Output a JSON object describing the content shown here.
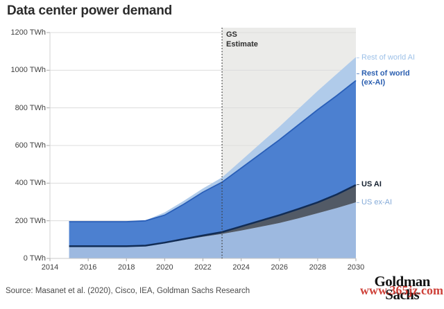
{
  "source": "Source: Masanet et al. (2020), Cisco, IEA, Goldman Sachs Research",
  "watermark": "www.365jz.com",
  "logo": {
    "line1": "Goldman",
    "line2": "Sachs"
  },
  "legend": [
    {
      "label": "Rest of world AI",
      "color": "#9dc1e8"
    },
    {
      "label": "Rest of world (ex-AI)",
      "color": "#2b5fb0"
    },
    {
      "label": "US AI",
      "color": "#14202f"
    },
    {
      "label": "US ex-AI",
      "color": "#84aad8"
    }
  ],
  "chart_data": {
    "type": "area",
    "title": "Data center power demand",
    "subtitle": "",
    "unit": "TWh",
    "estimate_label": "GS\nEstimate",
    "estimate_divider_year": 2023,
    "x": [
      2015,
      2016,
      2017,
      2018,
      2019,
      2020,
      2021,
      2022,
      2023,
      2024,
      2025,
      2026,
      2027,
      2028,
      2029,
      2030
    ],
    "x_ticks": [
      {
        "year": 2014,
        "label": "2014"
      },
      {
        "year": 2016,
        "label": "2016"
      },
      {
        "year": 2018,
        "label": "2018"
      },
      {
        "year": 2020,
        "label": "2020"
      },
      {
        "year": 2022,
        "label": "2022"
      },
      {
        "year": 2024,
        "label": "2024"
      },
      {
        "year": 2026,
        "label": "2026"
      },
      {
        "year": 2028,
        "label": "2028"
      },
      {
        "year": 2030,
        "label": "2030"
      }
    ],
    "y_ticks": [
      {
        "v": 0,
        "label": "0 TWh"
      },
      {
        "v": 200,
        "label": "200 TWh"
      },
      {
        "v": 400,
        "label": "400 TWh"
      },
      {
        "v": 600,
        "label": "600 TWh"
      },
      {
        "v": 800,
        "label": "800 TWh"
      },
      {
        "v": 1000,
        "label": "1000 TWh"
      },
      {
        "v": 1200,
        "label": "1200 TWh"
      }
    ],
    "xlim": [
      2014,
      2030
    ],
    "ylim": [
      0,
      1200
    ],
    "grid": true,
    "legend_position": "right",
    "colors": {
      "estimate_bg": "#ebebe9",
      "gridline": "#dcdcdc",
      "plot_border": "#d2d2d2",
      "axis_line": "#c9c9c9",
      "tick": "#a8a8a8",
      "divider": "#3c3c3c"
    },
    "series": [
      {
        "name": "US ex-AI",
        "color": "#9db9e0",
        "values": [
          62,
          62,
          62,
          62,
          64,
          80,
          98,
          115,
          130,
          148,
          168,
          188,
          213,
          240,
          268,
          298
        ]
      },
      {
        "name": "US AI",
        "color": "#525a66",
        "stroke": "#112c55",
        "stroke_width": 2.5,
        "values": [
          3,
          3,
          3,
          3,
          4,
          4,
          5,
          7,
          10,
          22,
          32,
          42,
          50,
          58,
          72,
          92
        ]
      },
      {
        "name": "Rest of world (ex-AI)",
        "color": "#4c80d0",
        "stroke": "#2a5fb8",
        "stroke_width": 1.8,
        "values": [
          130,
          130,
          130,
          130,
          132,
          146,
          185,
          230,
          265,
          310,
          355,
          400,
          447,
          492,
          525,
          555
        ]
      },
      {
        "name": "Rest of world AI",
        "color": "#b0cbea",
        "values": [
          0,
          0,
          0,
          0,
          2,
          15,
          18,
          20,
          25,
          40,
          55,
          70,
          85,
          100,
          115,
          125
        ]
      }
    ]
  }
}
